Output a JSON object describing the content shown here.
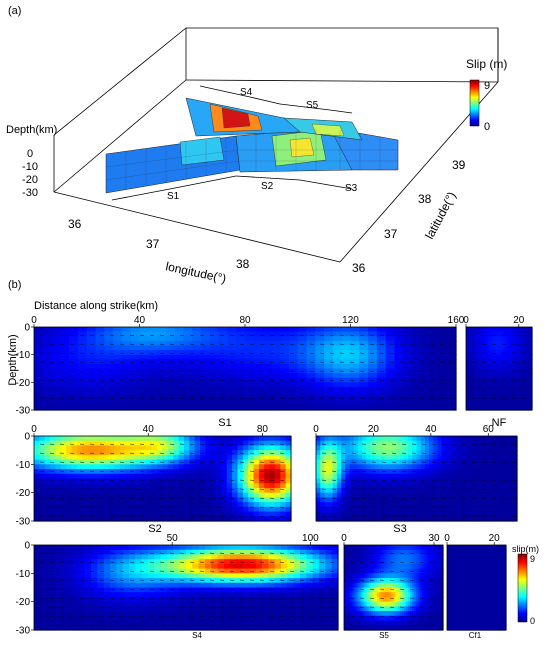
{
  "colors": {
    "jet": [
      "#00008f",
      "#0000ff",
      "#0080ff",
      "#00ffff",
      "#80ff80",
      "#ffff00",
      "#ff8000",
      "#ff0000",
      "#800000"
    ],
    "frame": "#000000",
    "slab_edge": "#202020"
  },
  "panel_a": {
    "label": "(a)",
    "depth_label": "Depth(km)",
    "depth_ticks": [
      "0",
      "-10",
      "-20",
      "-30"
    ],
    "lon_label": "longitude(°)",
    "lon_ticks": [
      "36",
      "37",
      "38"
    ],
    "lat_label": "latitude(°)",
    "lat_ticks": [
      "36",
      "37",
      "38",
      "39"
    ],
    "colorbar_title": "Slip (m)",
    "colorbar_ticks": [
      "9",
      "0"
    ],
    "segment_labels": [
      "S4",
      "S5",
      "S1",
      "S2",
      "S3"
    ]
  },
  "panel_b": {
    "label": "(b)",
    "xlabel": "Distance along strike(km)",
    "ylabel": "Depth(km)",
    "colorbar_title": "slip(m)",
    "colorbar_ticks": [
      "9",
      "0"
    ],
    "depth_ticks": [
      "0",
      "-10",
      "-20",
      "-30"
    ]
  },
  "chart_data": [
    {
      "type": "heatmap",
      "name": "S1",
      "xlim": [
        0,
        160
      ],
      "ylim": [
        -30,
        0
      ],
      "xticks": [
        0,
        40,
        80,
        120,
        160
      ],
      "yticks": [
        0,
        -10,
        -20,
        -30
      ],
      "slip_range_m": [
        0,
        9
      ],
      "patches": [
        {
          "x": 45,
          "y": -2,
          "sx": 25,
          "sy": 8,
          "slip": 2.0
        },
        {
          "x": 120,
          "y": -10,
          "sx": 18,
          "sy": 12,
          "slip": 2.5
        },
        {
          "x": 85,
          "y": -8,
          "sx": 30,
          "sy": 12,
          "slip": 1.2
        },
        {
          "x": 20,
          "y": -12,
          "sx": 25,
          "sy": 12,
          "slip": 1.0
        }
      ]
    },
    {
      "type": "heatmap",
      "name": "NF",
      "xlim": [
        0,
        25
      ],
      "ylim": [
        -30,
        0
      ],
      "xticks": [
        0,
        20
      ],
      "yticks": [],
      "slip_range_m": [
        0,
        9
      ],
      "patches": [
        {
          "x": 12,
          "y": -6,
          "sx": 10,
          "sy": 10,
          "slip": 1.2
        }
      ]
    },
    {
      "type": "heatmap",
      "name": "S2",
      "xlim": [
        0,
        90
      ],
      "ylim": [
        -30,
        0
      ],
      "xticks": [
        0,
        40,
        80
      ],
      "yticks": [
        0,
        -10,
        -20,
        -30
      ],
      "slip_range_m": [
        0,
        9
      ],
      "patches": [
        {
          "x": 20,
          "y": -5,
          "sx": 25,
          "sy": 7,
          "slip": 6.5
        },
        {
          "x": 83,
          "y": -14,
          "sx": 11,
          "sy": 10,
          "slip": 8.5
        },
        {
          "x": 45,
          "y": -3,
          "sx": 12,
          "sy": 6,
          "slip": 3.0
        }
      ]
    },
    {
      "type": "heatmap",
      "name": "S3",
      "xlim": [
        0,
        70
      ],
      "ylim": [
        -30,
        0
      ],
      "xticks": [
        0,
        20,
        40,
        60
      ],
      "yticks": [],
      "slip_range_m": [
        0,
        9
      ],
      "patches": [
        {
          "x": 25,
          "y": -4,
          "sx": 16,
          "sy": 8,
          "slip": 4.5
        },
        {
          "x": 4,
          "y": -12,
          "sx": 5,
          "sy": 10,
          "slip": 5.0
        }
      ]
    },
    {
      "type": "heatmap",
      "name": "S4",
      "xlim": [
        0,
        110
      ],
      "ylim": [
        -30,
        0
      ],
      "xticks": [
        50,
        100
      ],
      "yticks": [
        0,
        -10,
        -20,
        -30
      ],
      "slip_range_m": [
        0,
        9
      ],
      "patches": [
        {
          "x": 75,
          "y": -7,
          "sx": 28,
          "sy": 6,
          "slip": 8.0
        },
        {
          "x": 35,
          "y": -10,
          "sx": 18,
          "sy": 9,
          "slip": 2.0
        }
      ]
    },
    {
      "type": "heatmap",
      "name": "S5",
      "xlim": [
        0,
        33
      ],
      "ylim": [
        -30,
        0
      ],
      "xticks": [
        0,
        30
      ],
      "yticks": [],
      "slip_range_m": [
        0,
        9
      ],
      "patches": [
        {
          "x": 14,
          "y": -18,
          "sx": 9,
          "sy": 6,
          "slip": 6.5
        },
        {
          "x": 20,
          "y": -5,
          "sx": 10,
          "sy": 7,
          "slip": 2.0
        }
      ]
    },
    {
      "type": "heatmap",
      "name": "Cf1",
      "xlim": [
        0,
        25
      ],
      "ylim": [
        -30,
        0
      ],
      "xticks": [
        0,
        20
      ],
      "yticks": [],
      "slip_range_m": [
        0,
        9
      ],
      "patches": []
    }
  ]
}
